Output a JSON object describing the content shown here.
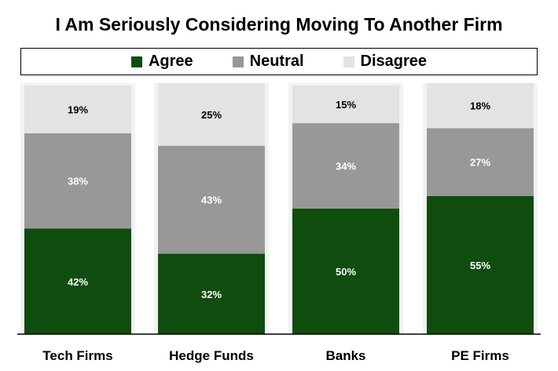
{
  "chart_data": {
    "type": "bar",
    "stacked": true,
    "title": "I Am Seriously Considering Moving To Another Firm",
    "categories": [
      "Tech Firms",
      "Hedge Funds",
      "Banks",
      "PE Firms"
    ],
    "series": [
      {
        "name": "Agree",
        "values": [
          42,
          32,
          50,
          55
        ],
        "color": "#0e4d0e",
        "labels": [
          "42%",
          "32%",
          "50%",
          "55%"
        ]
      },
      {
        "name": "Neutral",
        "values": [
          38,
          43,
          34,
          27
        ],
        "color": "#989898",
        "labels": [
          "38%",
          "43%",
          "34%",
          "27%"
        ]
      },
      {
        "name": "Disagree",
        "values": [
          19,
          25,
          15,
          18
        ],
        "color": "#e3e3e3",
        "labels": [
          "19%",
          "25%",
          "15%",
          "18%"
        ]
      }
    ],
    "ylim": [
      0,
      100
    ],
    "legend_position": "top",
    "grid": false
  }
}
